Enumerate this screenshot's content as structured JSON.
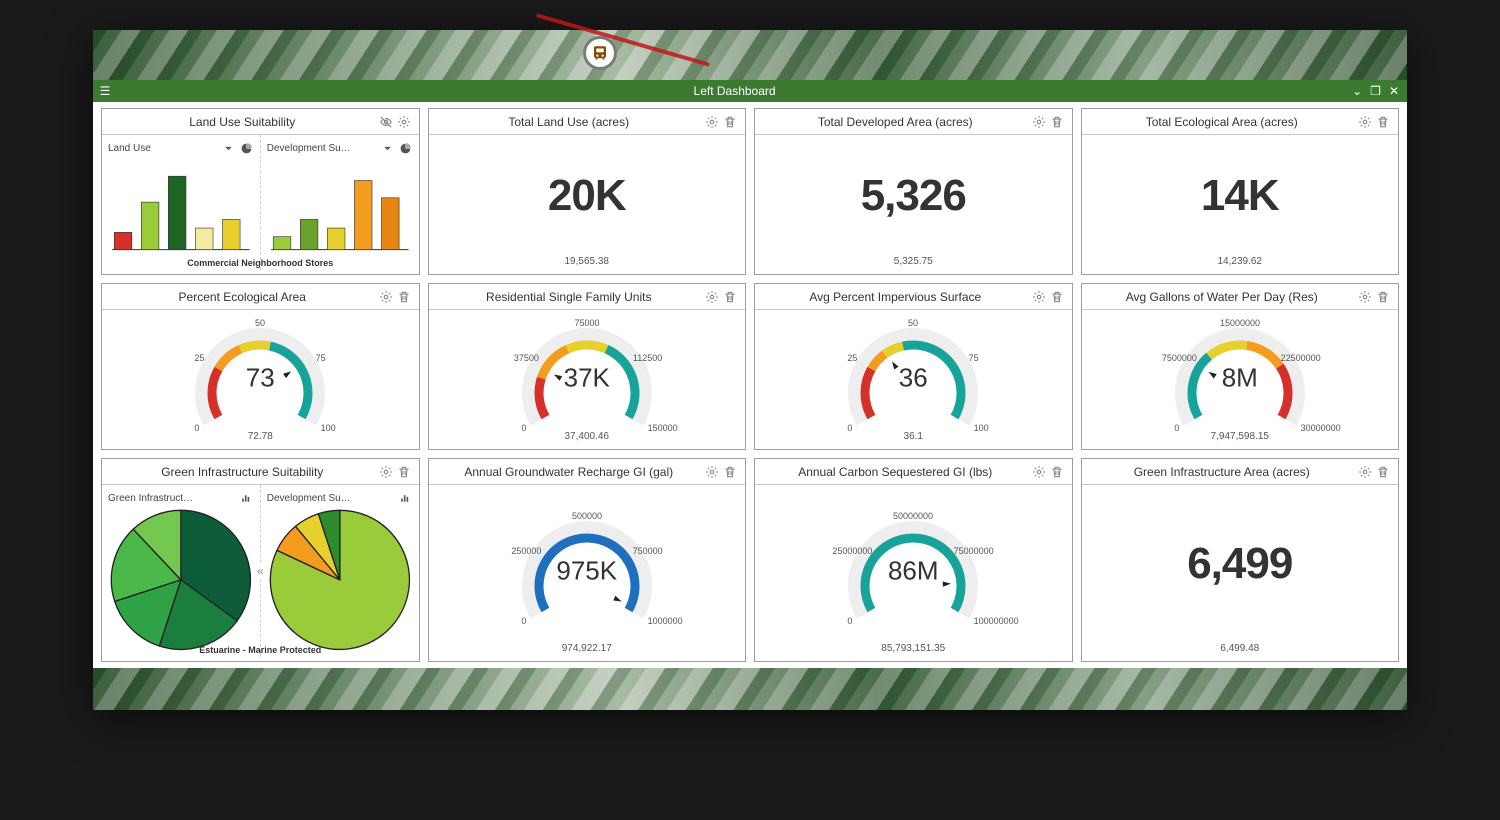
{
  "window": {
    "title": "Left Dashboard",
    "header_bg": "#3b7a2f",
    "header_fg": "#ffffff"
  },
  "palette": {
    "card_border": "#9e9e9e",
    "text": "#333333",
    "muted": "#8a8a8a",
    "red": "#d7302a",
    "orange": "#f39c1f",
    "yellow": "#e7d02e",
    "green": "#2e8b2e",
    "dgreen": "#1e6524",
    "teal": "#18a39a",
    "blue": "#1f6fbf",
    "lime": "#9acb3b"
  },
  "cards": [
    {
      "kind": "dual_bar",
      "title": "Land Use Suitability",
      "icons": [
        "visibility-off",
        "gear"
      ],
      "footer": "Commercial Neighborhood Stores",
      "left": {
        "label": "Land Use",
        "dropdown": true,
        "right_icon": "pie",
        "bars": [
          {
            "h": 20,
            "c": "#d7302a"
          },
          {
            "h": 55,
            "c": "#9acb3b"
          },
          {
            "h": 85,
            "c": "#1e6524"
          },
          {
            "h": 25,
            "c": "#f5eaa3"
          },
          {
            "h": 35,
            "c": "#e7d02e"
          }
        ]
      },
      "right": {
        "label": "Development Su…",
        "dropdown": true,
        "right_icon": "pie",
        "bars": [
          {
            "h": 15,
            "c": "#9acb3b"
          },
          {
            "h": 35,
            "c": "#6aa22d"
          },
          {
            "h": 25,
            "c": "#e7d02e"
          },
          {
            "h": 80,
            "c": "#f39c1f"
          },
          {
            "h": 60,
            "c": "#e88614"
          }
        ]
      }
    },
    {
      "kind": "stat",
      "title": "Total Land Use (acres)",
      "icons": [
        "gear",
        "trash"
      ],
      "value": "20K",
      "footer": "19,565.38"
    },
    {
      "kind": "stat",
      "title": "Total Developed Area (acres)",
      "icons": [
        "gear",
        "trash"
      ],
      "value": "5,326",
      "footer": "5,325.75"
    },
    {
      "kind": "stat",
      "title": "Total Ecological Area (acres)",
      "icons": [
        "gear",
        "trash"
      ],
      "value": "14K",
      "footer": "14,239.62"
    },
    {
      "kind": "gauge",
      "title": "Percent Ecological Area",
      "icons": [
        "gear",
        "trash"
      ],
      "value_display": "73",
      "value": 73,
      "min": 0,
      "max": 100,
      "ticks": [
        "0",
        "25",
        "50",
        "75",
        "100"
      ],
      "segments": [
        {
          "from": 0,
          "to": 25,
          "c": "#d7302a"
        },
        {
          "from": 25,
          "to": 40,
          "c": "#f39c1f"
        },
        {
          "from": 40,
          "to": 55,
          "c": "#e7d02e"
        },
        {
          "from": 55,
          "to": 100,
          "c": "#18a39a"
        }
      ],
      "footer": "72.78"
    },
    {
      "kind": "gauge",
      "title": "Residential Single Family Units",
      "icons": [
        "gear",
        "trash"
      ],
      "value_display": "37K",
      "value": 37000,
      "min": 0,
      "max": 150000,
      "ticks": [
        "0",
        "37500",
        "75000",
        "112500",
        "150000"
      ],
      "segments": [
        {
          "from": 0,
          "to": 30000,
          "c": "#d7302a"
        },
        {
          "from": 30000,
          "to": 60000,
          "c": "#f39c1f"
        },
        {
          "from": 60000,
          "to": 90000,
          "c": "#e7d02e"
        },
        {
          "from": 90000,
          "to": 150000,
          "c": "#18a39a"
        }
      ],
      "footer": "37,400.46"
    },
    {
      "kind": "gauge",
      "title": "Avg Percent Impervious Surface",
      "icons": [
        "gear",
        "trash"
      ],
      "value_display": "36",
      "value": 36,
      "min": 0,
      "max": 100,
      "ticks": [
        "0",
        "25",
        "50",
        "75",
        "100"
      ],
      "segments": [
        {
          "from": 0,
          "to": 25,
          "c": "#d7302a"
        },
        {
          "from": 25,
          "to": 35,
          "c": "#f39c1f"
        },
        {
          "from": 35,
          "to": 45,
          "c": "#e7d02e"
        },
        {
          "from": 45,
          "to": 100,
          "c": "#18a39a"
        }
      ],
      "footer": "36.1"
    },
    {
      "kind": "gauge",
      "title": "Avg Gallons of Water Per Day (Res)",
      "icons": [
        "gear",
        "trash"
      ],
      "value_display": "8M",
      "value": 8000000,
      "min": 0,
      "max": 30000000,
      "ticks": [
        "0",
        "7500000",
        "15000000",
        "22500000",
        "30000000"
      ],
      "segments": [
        {
          "from": 0,
          "to": 10000000,
          "c": "#18a39a"
        },
        {
          "from": 10000000,
          "to": 16000000,
          "c": "#e7d02e"
        },
        {
          "from": 16000000,
          "to": 22000000,
          "c": "#f39c1f"
        },
        {
          "from": 22000000,
          "to": 30000000,
          "c": "#d7302a"
        }
      ],
      "footer": "7,947,598.15"
    },
    {
      "kind": "dual_pie",
      "title": "Green Infrastructure Suitability",
      "icons": [
        "gear",
        "trash"
      ],
      "footer": "Estuarine - Marine Protected",
      "left": {
        "label": "Green Infrastruct…",
        "right_icon": "bar",
        "slices": [
          {
            "v": 35,
            "c": "#0d5d3a"
          },
          {
            "v": 20,
            "c": "#1b7e3e"
          },
          {
            "v": 15,
            "c": "#2fa247"
          },
          {
            "v": 18,
            "c": "#4ab94a"
          },
          {
            "v": 12,
            "c": "#73c84f"
          }
        ]
      },
      "right": {
        "label": "Development Su…",
        "right_icon": "bar",
        "slices": [
          {
            "v": 82,
            "c": "#9acb3b"
          },
          {
            "v": 7,
            "c": "#f39c1f"
          },
          {
            "v": 6,
            "c": "#e7d02e"
          },
          {
            "v": 5,
            "c": "#2e8b2e"
          }
        ]
      }
    },
    {
      "kind": "gauge",
      "title": "Annual Groundwater Recharge GI (gal)",
      "icons": [
        "gear",
        "trash"
      ],
      "value_display": "975K",
      "value": 975000,
      "min": 0,
      "max": 1000000,
      "ticks": [
        "0",
        "250000",
        "500000",
        "750000",
        "1000000"
      ],
      "segments": [
        {
          "from": 0,
          "to": 1000000,
          "c": "#1f6fbf"
        }
      ],
      "footer": "974,922.17"
    },
    {
      "kind": "gauge",
      "title": "Annual Carbon Sequestered GI (lbs)",
      "icons": [
        "gear",
        "trash"
      ],
      "value_display": "86M",
      "value": 86000000,
      "min": 0,
      "max": 100000000,
      "ticks": [
        "0",
        "25000000",
        "50000000",
        "75000000",
        "100000000"
      ],
      "segments": [
        {
          "from": 0,
          "to": 100000000,
          "c": "#18a39a"
        }
      ],
      "footer": "85,793,151.35"
    },
    {
      "kind": "stat",
      "title": "Green Infrastructure Area (acres)",
      "icons": [
        "gear",
        "trash"
      ],
      "value": "6,499",
      "footer": "6,499.48"
    }
  ]
}
